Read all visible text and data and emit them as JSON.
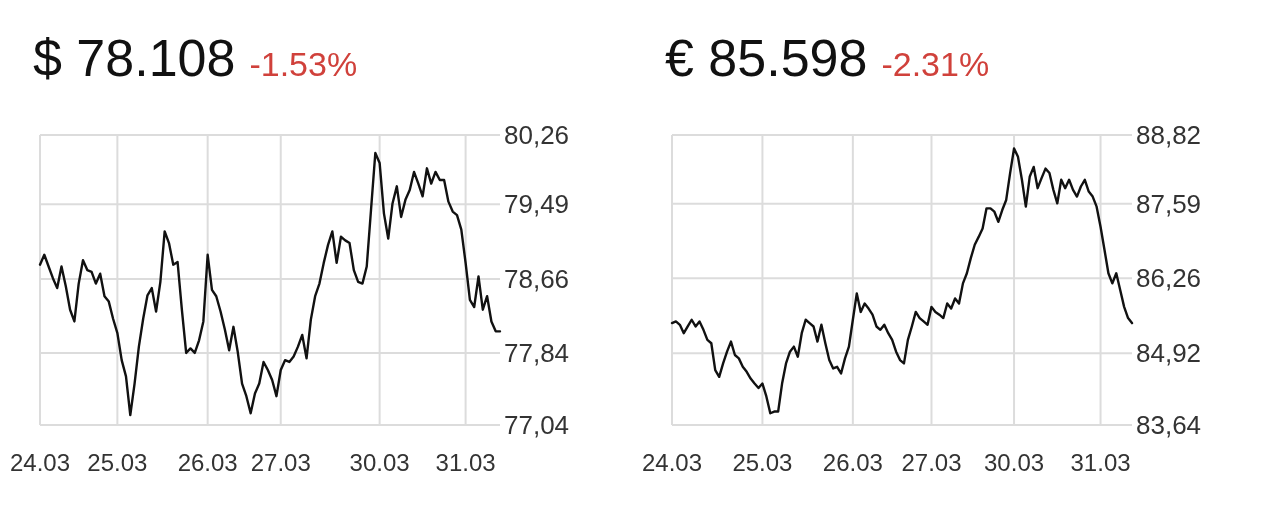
{
  "chart_data": [
    {
      "type": "line",
      "title": "$ 78.108",
      "subtitle": "-1.53%",
      "grid": true,
      "ylim": [
        77.04,
        80.26
      ],
      "yticks": [
        {
          "value": 77.04,
          "label": "77,04"
        },
        {
          "value": 77.84,
          "label": "77,84"
        },
        {
          "value": 78.66,
          "label": "78,66"
        },
        {
          "value": 79.49,
          "label": "79,49"
        },
        {
          "value": 80.26,
          "label": "80,26"
        }
      ],
      "categories": [
        "24.03",
        null,
        null,
        null,
        null,
        null,
        null,
        null,
        null,
        null,
        null,
        null,
        null,
        null,
        null,
        null,
        null,
        null,
        "25.03",
        null,
        null,
        null,
        null,
        null,
        null,
        null,
        null,
        null,
        null,
        null,
        null,
        null,
        null,
        null,
        null,
        null,
        null,
        null,
        null,
        "26.03",
        null,
        null,
        null,
        null,
        null,
        null,
        null,
        null,
        null,
        null,
        null,
        null,
        null,
        null,
        null,
        null,
        "27.03",
        null,
        null,
        null,
        null,
        null,
        null,
        null,
        null,
        null,
        null,
        null,
        null,
        null,
        null,
        null,
        null,
        null,
        null,
        null,
        null,
        null,
        null,
        "30.03",
        null,
        null,
        null,
        null,
        null,
        null,
        null,
        null,
        null,
        null,
        null,
        null,
        null,
        null,
        null,
        null,
        null,
        null,
        null,
        "31.03",
        null,
        null,
        null,
        null,
        null,
        null,
        null,
        null
      ],
      "series": [
        {
          "color": "#111111",
          "values": [
            78.82,
            78.93,
            78.8,
            78.67,
            78.56,
            78.8,
            78.58,
            78.32,
            78.19,
            78.61,
            78.87,
            78.76,
            78.74,
            78.61,
            78.72,
            78.47,
            78.41,
            78.22,
            78.06,
            77.76,
            77.58,
            77.15,
            77.5,
            77.91,
            78.22,
            78.48,
            78.56,
            78.3,
            78.63,
            79.19,
            79.06,
            78.82,
            78.85,
            78.32,
            77.84,
            77.89,
            77.84,
            77.98,
            78.19,
            78.93,
            78.54,
            78.47,
            78.3,
            78.1,
            77.87,
            78.13,
            77.85,
            77.5,
            77.36,
            77.17,
            77.39,
            77.5,
            77.74,
            77.65,
            77.54,
            77.36,
            77.65,
            77.76,
            77.74,
            77.8,
            77.91,
            78.04,
            77.78,
            78.21,
            78.47,
            78.61,
            78.84,
            79.04,
            79.19,
            78.84,
            79.13,
            79.09,
            79.06,
            78.76,
            78.63,
            78.61,
            78.8,
            79.43,
            80.06,
            79.95,
            79.39,
            79.11,
            79.5,
            79.69,
            79.35,
            79.54,
            79.65,
            79.85,
            79.72,
            79.58,
            79.89,
            79.72,
            79.85,
            79.76,
            79.76,
            79.52,
            79.41,
            79.37,
            79.21,
            78.84,
            78.43,
            78.35,
            78.69,
            78.32,
            78.47,
            78.19,
            78.08,
            78.08
          ]
        }
      ]
    },
    {
      "type": "line",
      "title": "€ 85.598",
      "subtitle": "-2.31%",
      "grid": true,
      "ylim": [
        83.64,
        88.82
      ],
      "yticks": [
        {
          "value": 83.64,
          "label": "83,64"
        },
        {
          "value": 84.92,
          "label": "84,92"
        },
        {
          "value": 86.26,
          "label": "86,26"
        },
        {
          "value": 87.59,
          "label": "87,59"
        },
        {
          "value": 88.82,
          "label": "88,82"
        }
      ],
      "categories": [
        "24.03",
        null,
        null,
        null,
        null,
        null,
        null,
        null,
        null,
        null,
        null,
        null,
        null,
        null,
        null,
        null,
        null,
        null,
        null,
        null,
        null,
        null,
        null,
        "25.03",
        null,
        null,
        null,
        null,
        null,
        null,
        null,
        null,
        null,
        null,
        null,
        null,
        null,
        null,
        null,
        null,
        null,
        null,
        null,
        null,
        null,
        null,
        "26.03",
        null,
        null,
        null,
        null,
        null,
        null,
        null,
        null,
        null,
        null,
        null,
        null,
        null,
        null,
        null,
        null,
        null,
        null,
        null,
        "27.03",
        null,
        null,
        null,
        null,
        null,
        null,
        null,
        null,
        null,
        null,
        null,
        null,
        null,
        null,
        null,
        null,
        null,
        null,
        null,
        null,
        "30.03",
        null,
        null,
        null,
        null,
        null,
        null,
        null,
        null,
        null,
        null,
        null,
        null,
        null,
        null,
        null,
        null,
        null,
        null,
        null,
        null,
        null,
        "31.03",
        null,
        null,
        null,
        null,
        null,
        null,
        null,
        null
      ],
      "series": [
        {
          "color": "#111111",
          "values": [
            85.46,
            85.49,
            85.43,
            85.28,
            85.4,
            85.52,
            85.4,
            85.49,
            85.34,
            85.16,
            85.1,
            84.62,
            84.5,
            84.74,
            84.95,
            85.13,
            84.89,
            84.83,
            84.68,
            84.59,
            84.47,
            84.38,
            84.3,
            84.38,
            84.15,
            83.85,
            83.88,
            83.88,
            84.38,
            84.74,
            84.95,
            85.04,
            84.86,
            85.28,
            85.52,
            85.46,
            85.4,
            85.13,
            85.43,
            85.1,
            84.8,
            84.65,
            84.68,
            84.56,
            84.83,
            85.04,
            85.52,
            85.99,
            85.66,
            85.81,
            85.72,
            85.61,
            85.4,
            85.34,
            85.43,
            85.28,
            85.16,
            84.95,
            84.8,
            84.74,
            85.16,
            85.4,
            85.66,
            85.55,
            85.49,
            85.43,
            85.75,
            85.66,
            85.61,
            85.55,
            85.81,
            85.72,
            85.9,
            85.81,
            86.17,
            86.35,
            86.62,
            86.86,
            87.0,
            87.15,
            87.51,
            87.51,
            87.45,
            87.27,
            87.48,
            87.66,
            88.14,
            88.58,
            88.43,
            88.02,
            87.54,
            88.08,
            88.25,
            87.87,
            88.05,
            88.22,
            88.14,
            87.84,
            87.6,
            88.02,
            87.87,
            88.02,
            87.84,
            87.72,
            87.9,
            88.02,
            87.81,
            87.72,
            87.54,
            87.18,
            86.77,
            86.35,
            86.17,
            86.35,
            86.05,
            85.75,
            85.55,
            85.46
          ]
        }
      ]
    }
  ]
}
